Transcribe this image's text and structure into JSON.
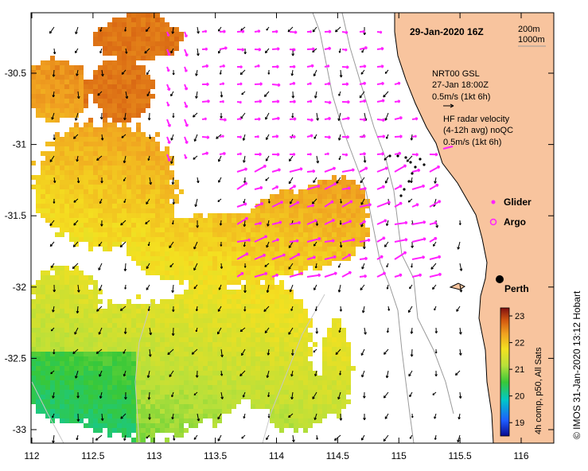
{
  "map": {
    "title": "29-Jan-2020 16Z",
    "x_ticks": [
      "112",
      "112.5",
      "113",
      "113.5",
      "114",
      "114.5",
      "115",
      "115.5",
      "116"
    ],
    "y_ticks": [
      "-30.5",
      "-31",
      "-31.5",
      "-32",
      "-32.5",
      "-33"
    ],
    "x_range": [
      112,
      116.3
    ],
    "y_range": [
      -33.1,
      -30.05
    ],
    "isobath_legend": [
      "200m",
      "1000m"
    ],
    "gsl_legend": [
      "NRT00 GSL",
      "27-Jan 18:00Z",
      "0.5m/s (1kt 6h)"
    ],
    "radar_legend": [
      "HF radar velocity",
      "(4-12h avg) noQC",
      "0.5m/s (1kt 6h)"
    ],
    "glider_label": "Glider",
    "argo_label": "Argo",
    "city_label": "Perth",
    "city_lon": 115.86,
    "city_lat": -31.95,
    "colorbar_ticks": [
      "23",
      "22",
      "21",
      "20",
      "19"
    ],
    "colorbar_range": [
      18.5,
      23.3
    ],
    "colorbar_caption": "4h comp, p50, All Sats",
    "credit": "© IMOS 31-Jan-2020 13:12 Hobart",
    "colors": {
      "land": "#f8c49e",
      "radar_arrow": "#ff22ff",
      "gsl_arrow": "#000000",
      "glider": "#000000",
      "isobath": "#9a9a9a",
      "coast": "#000000"
    }
  }
}
